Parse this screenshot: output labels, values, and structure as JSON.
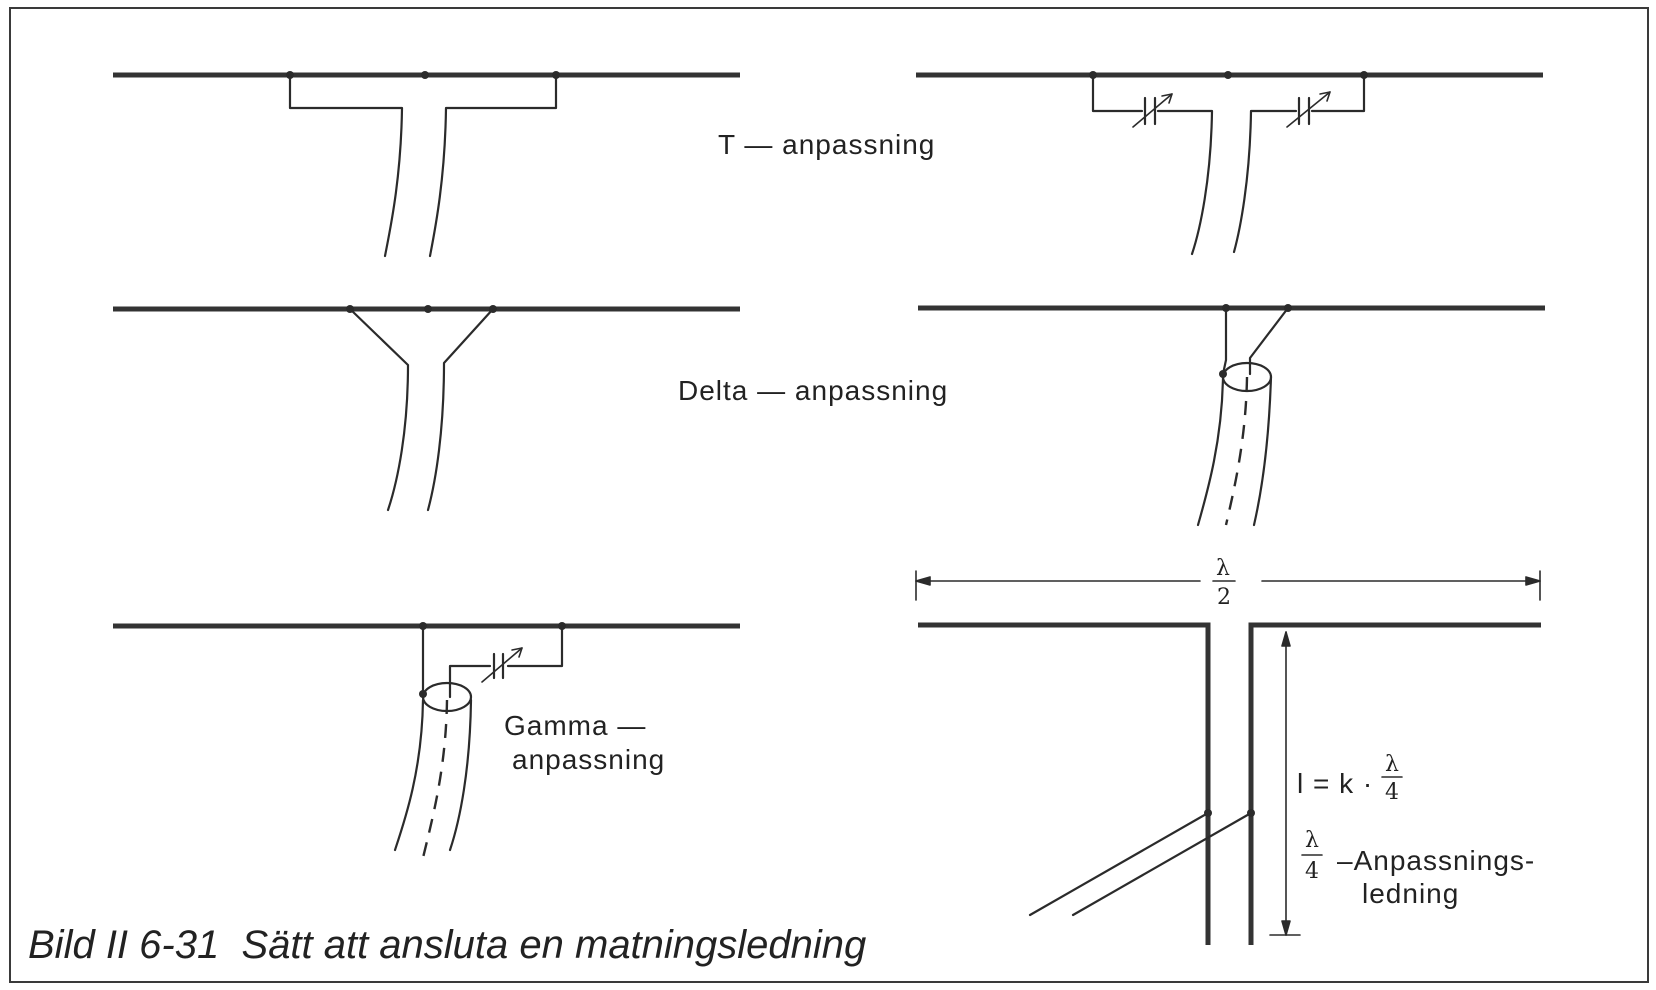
{
  "labels": {
    "t_match": "T — anpassning",
    "delta_match": "Delta — anpassning",
    "gamma_line1": "Gamma —",
    "gamma_line2": "anpassning",
    "half_wave_num": "λ",
    "half_wave_den": "2",
    "length_formula_prefix": "l = k ·",
    "quarter_num": "λ",
    "quarter_den": "4",
    "stub_line1": "–Anpassnings-",
    "stub_line2": "ledning"
  },
  "caption": "Bild II 6-31  Sätt att ansluta en matningsledning"
}
